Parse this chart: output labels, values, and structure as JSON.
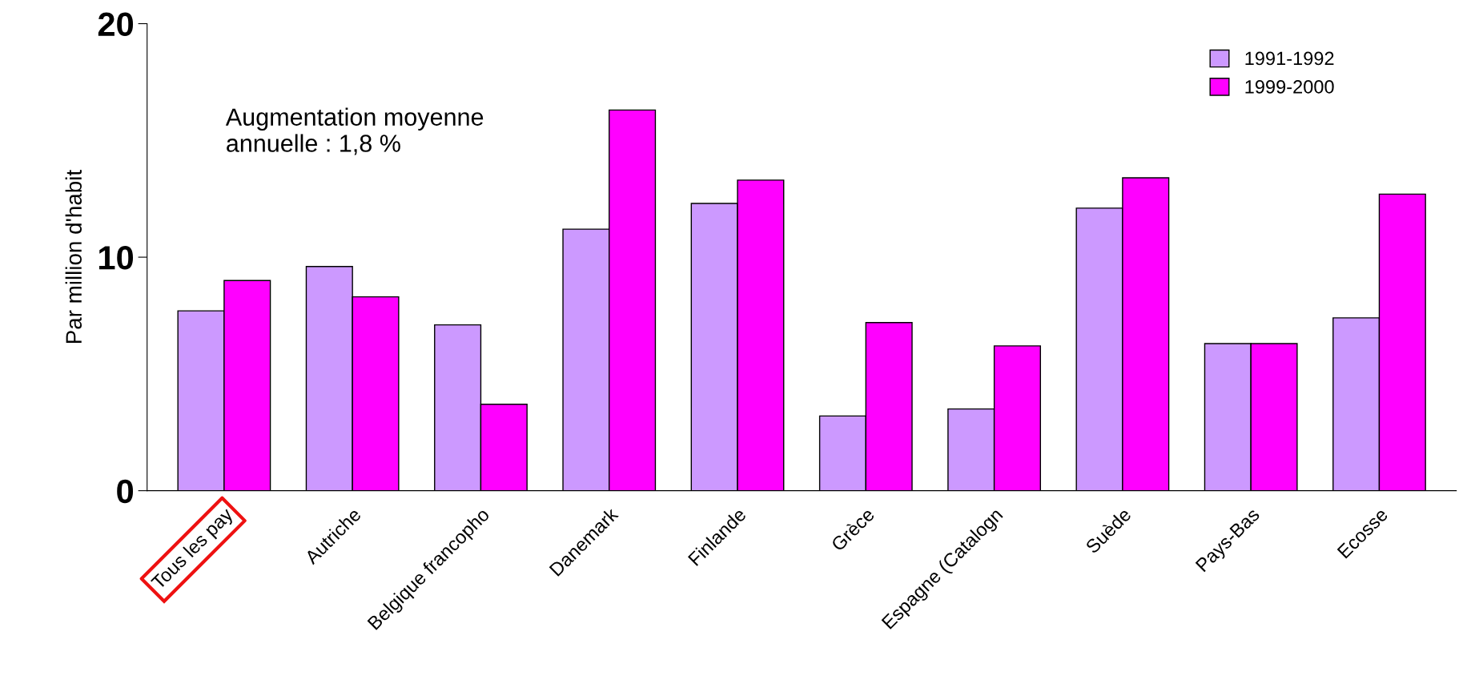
{
  "chart_data": {
    "type": "bar",
    "ylabel": "Par million d'habit",
    "categories": [
      "Tous les pay",
      "Autriche",
      "Belgique francopho",
      "Danemark",
      "Finlande",
      "Grèce",
      "Espagne (Catalogn",
      "Suède",
      "Pays-Bas",
      "Ecosse"
    ],
    "series": [
      {
        "name": "1991-1992",
        "color": "#cc99ff",
        "values": [
          7.7,
          9.6,
          7.1,
          11.2,
          12.3,
          3.2,
          3.5,
          12.1,
          6.3,
          7.4
        ]
      },
      {
        "name": "1999-2000",
        "color": "#ff00ff",
        "values": [
          9.0,
          8.3,
          3.7,
          16.3,
          13.3,
          7.2,
          6.2,
          13.4,
          6.3,
          12.7
        ]
      }
    ],
    "ylim": [
      0,
      20
    ],
    "yticks": [
      0,
      10,
      20
    ],
    "grid": false,
    "legend": "top right",
    "annotations": [
      "Augmentation moyenne\nannuelle : 1,8 %"
    ]
  }
}
